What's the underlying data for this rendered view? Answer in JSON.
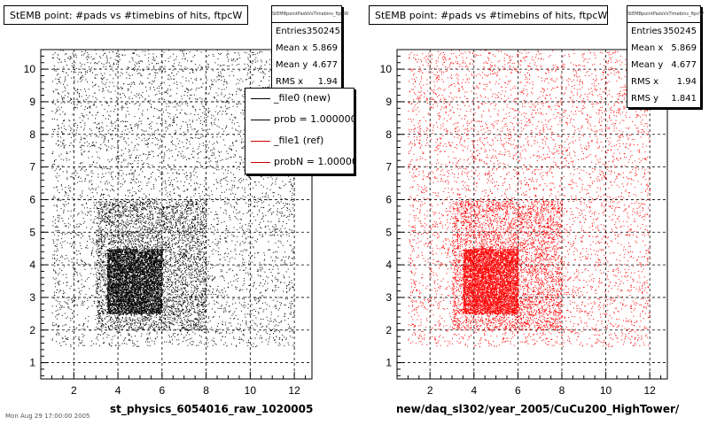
{
  "panels": [
    {
      "title": "StEMB point: #pads vs #timebins of hits, ftpcW",
      "stats_header": "StEMBpointPadsVsTimebins_ftpcW",
      "stats": [
        {
          "label": "Entries",
          "value": "350245"
        },
        {
          "label": "Mean x",
          "value": "5.869"
        },
        {
          "label": "Mean y",
          "value": "4.677"
        },
        {
          "label": "RMS x",
          "value": "1.94"
        }
      ],
      "legend": [
        {
          "label": "_file0 (new)",
          "color": "#000000"
        },
        {
          "label": "prob = 1.000000",
          "color": "#000000"
        },
        {
          "label": "_file1 (ref)",
          "color": "#cc0000"
        },
        {
          "label": "probN = 1.000000",
          "color": "#cc0000"
        }
      ],
      "xtitle": "st_physics_6054016_raw_1020005",
      "point_color": "#000000"
    },
    {
      "title": "StEMB point: #pads vs #timebins of hits, ftpcW",
      "stats_header": "StEMBpointPadsVsTimebins_ftpcW",
      "stats": [
        {
          "label": "Entries",
          "value": "350245"
        },
        {
          "label": "Mean x",
          "value": "5.869"
        },
        {
          "label": "Mean y",
          "value": "4.677"
        },
        {
          "label": "RMS x",
          "value": "1.94"
        },
        {
          "label": "RMS y",
          "value": "1.841"
        }
      ],
      "xtitle": "new/daq_sl302/year_2005/CuCu200_HighTower/",
      "point_color": "#ff0000"
    }
  ],
  "footer": "Mon Aug 29 17:00:00 2005",
  "chart_data": [
    {
      "type": "scatter",
      "title": "StEMB point: #pads vs #timebins of hits, ftpcW",
      "xlabel": "st_physics_6054016_raw_1020005",
      "ylabel": "",
      "xlim": [
        0.5,
        12.8
      ],
      "ylim": [
        0.5,
        10.6
      ],
      "xticks": [
        2,
        4,
        6,
        8,
        10,
        12
      ],
      "yticks": [
        1,
        2,
        3,
        4,
        5,
        6,
        7,
        8,
        9,
        10
      ],
      "grid": true,
      "entries": 350245,
      "mean_x": 5.869,
      "mean_y": 4.677,
      "rms_x": 1.94,
      "color": "#000000",
      "density_regions": [
        {
          "x": [
            1.0,
            12.0
          ],
          "y": [
            1.5,
            10.6
          ],
          "level": "low"
        },
        {
          "x": [
            3.0,
            8.0
          ],
          "y": [
            2.0,
            6.0
          ],
          "level": "medium"
        },
        {
          "x": [
            3.5,
            6.0
          ],
          "y": [
            2.5,
            4.5
          ],
          "level": "high"
        }
      ]
    },
    {
      "type": "scatter",
      "title": "StEMB point: #pads vs #timebins of hits, ftpcW",
      "xlabel": "new/daq_sl302/year_2005/CuCu200_HighTower/",
      "ylabel": "",
      "xlim": [
        0.5,
        12.8
      ],
      "ylim": [
        0.5,
        10.6
      ],
      "xticks": [
        2,
        4,
        6,
        8,
        10,
        12
      ],
      "yticks": [
        1,
        2,
        3,
        4,
        5,
        6,
        7,
        8,
        9,
        10
      ],
      "grid": true,
      "entries": 350245,
      "mean_x": 5.869,
      "mean_y": 4.677,
      "rms_x": 1.94,
      "rms_y": 1.841,
      "color": "#ff0000",
      "density_regions": [
        {
          "x": [
            1.0,
            12.0
          ],
          "y": [
            1.5,
            10.6
          ],
          "level": "low"
        },
        {
          "x": [
            3.0,
            8.0
          ],
          "y": [
            2.0,
            6.0
          ],
          "level": "medium"
        },
        {
          "x": [
            3.5,
            6.0
          ],
          "y": [
            2.5,
            4.5
          ],
          "level": "high"
        }
      ]
    }
  ]
}
